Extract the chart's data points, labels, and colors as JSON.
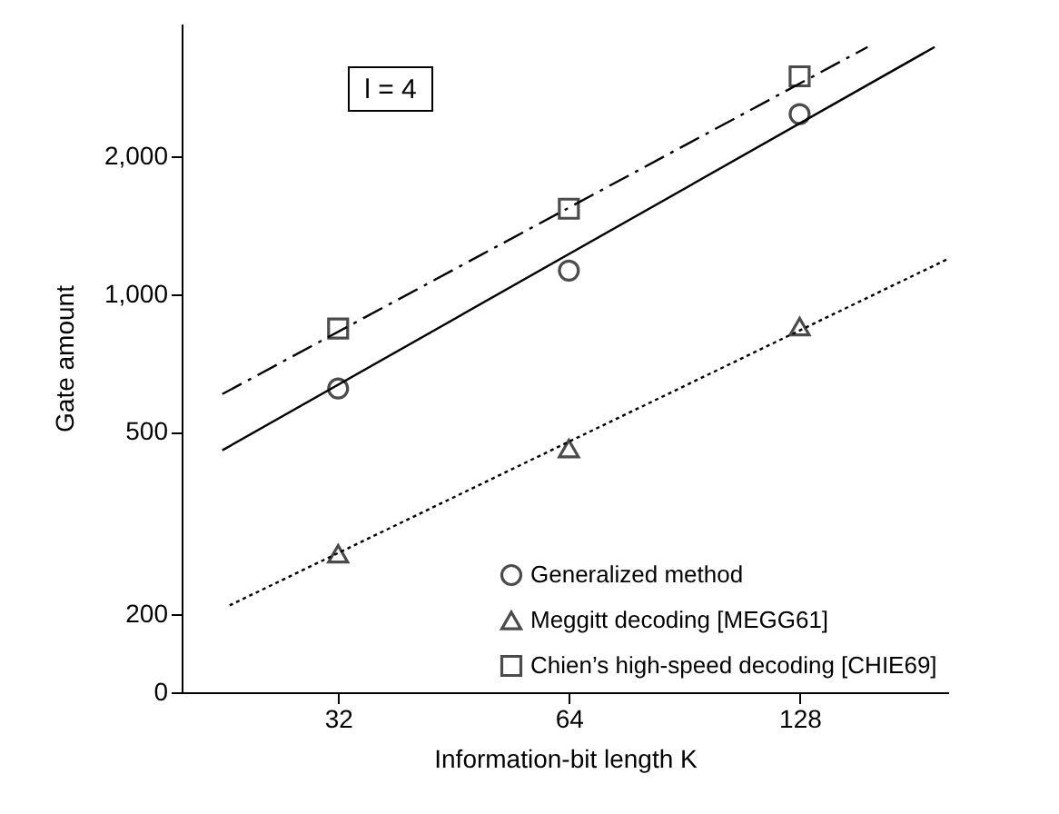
{
  "chart_data": {
    "type": "scatter",
    "xlabel": "Information-bit length K",
    "ylabel": "Gate amount",
    "log": "xy",
    "xlim": [
      20,
      200
    ],
    "xticks": [
      32,
      64,
      128
    ],
    "ylim": [
      0,
      3900
    ],
    "yticks": [
      0,
      {
        "value": 200,
        "label": "200"
      },
      {
        "value": 500,
        "label": "500"
      },
      {
        "value": 1000,
        "label": "1,000"
      },
      {
        "value": 2000,
        "label": "2,000"
      }
    ],
    "grid": false,
    "legend": "bottom right",
    "annotations": [
      "l = 4"
    ],
    "series": [
      {
        "name": "Generalized method",
        "marker": "circle",
        "color": "#000000",
        "x": [
          32,
          64,
          128
        ],
        "values": [
          622,
          1126,
          2474
        ]
      },
      {
        "name": "Meggitt decoding [MEGG61]",
        "marker": "triangle",
        "color": "#000000",
        "x": [
          32,
          64,
          128
        ],
        "values": [
          271,
          460,
          849
        ]
      },
      {
        "name": "Chien’s high-speed decoding [CHIE69]",
        "marker": "square",
        "color": "#000000",
        "x": [
          32,
          64,
          128
        ],
        "values": [
          841,
          1537,
          2992
        ]
      },
      {
        "type": "line",
        "line_style": "solid",
        "color": "#000000",
        "x": [
          22.6,
          192
        ],
        "values": [
          456,
          3467
        ]
      },
      {
        "type": "line",
        "line_style": "dotted",
        "color": "#000000",
        "x": [
          23.1,
          199
        ],
        "values": [
          209,
          1190
        ]
      },
      {
        "type": "line",
        "line_style": "dashed",
        "color": "#000000",
        "x": [
          22.6,
          157
        ],
        "values": [
          605,
          3467
        ]
      }
    ]
  }
}
